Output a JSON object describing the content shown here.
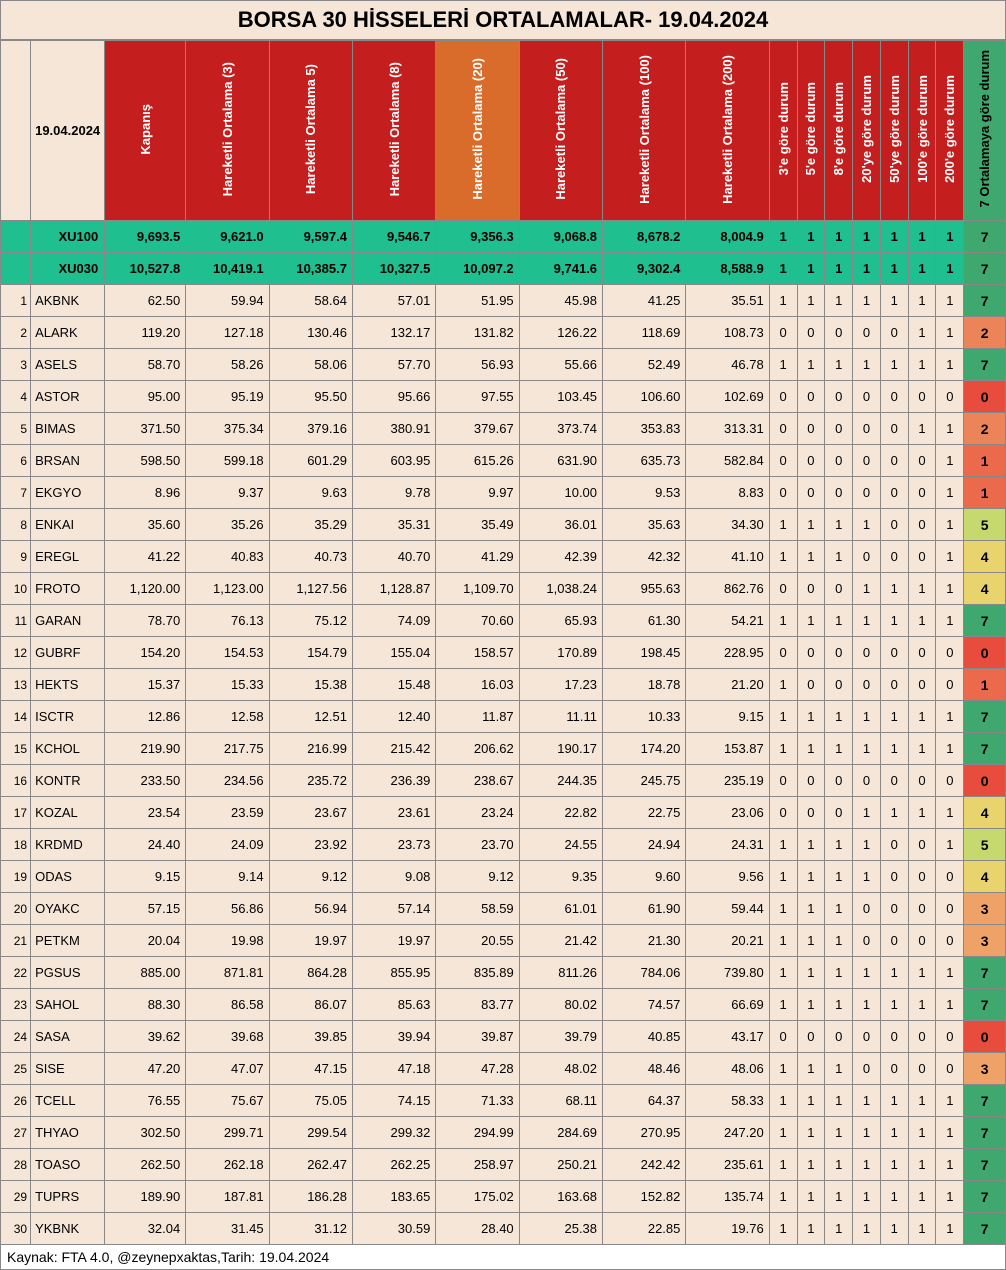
{
  "title": "BORSA 30 HİSSELERİ ORTALAMALAR- 19.04.2024",
  "date_label": "19.04.2024",
  "footer": "Kaynak: FTA 4.0, @zeynepxaktas,Tarih: 19.04.2024",
  "headers": {
    "close": "Kapanış",
    "ma3": "Hareketli Ortalama (3)",
    "ma5": "Hareketli Ortalama 5)",
    "ma8": "Hareketli Ortalama (8)",
    "ma20": "Hareketli Ortalama (20)",
    "ma50": "Hareketli Ortalama (50)",
    "ma100": "Hareketli Ortalama (100)",
    "ma200": "Hareketli Ortalama (200)",
    "f3": "3'e göre durum",
    "f5": "5'e göre durum",
    "f8": "8'e göre durum",
    "f20": "20'ye göre durum",
    "f50": "50'ye göre durum",
    "f100": "100'e göre durum",
    "f200": "200'e göre durum",
    "sum": "7 Ortalamaya göre durum"
  },
  "header_colors": {
    "red": "#c41e1e",
    "orange": "#d96b2b",
    "green": "#3fa86f"
  },
  "sum_color_map": {
    "0": "#e84c3d",
    "1": "#ea6a4b",
    "2": "#ec8459",
    "3": "#efa267",
    "4": "#e9d36d",
    "5": "#c6d96e",
    "6": "#8cc86f",
    "7": "#3fa86f"
  },
  "index_rows": [
    {
      "ticker": "XU100",
      "vals": [
        "9,693.5",
        "9,621.0",
        "9,597.4",
        "9,546.7",
        "9,356.3",
        "9,068.8",
        "8,678.2",
        "8,004.9"
      ],
      "flags": [
        1,
        1,
        1,
        1,
        1,
        1,
        1
      ],
      "sum": 7
    },
    {
      "ticker": "XU030",
      "vals": [
        "10,527.8",
        "10,419.1",
        "10,385.7",
        "10,327.5",
        "10,097.2",
        "9,741.6",
        "9,302.4",
        "8,588.9"
      ],
      "flags": [
        1,
        1,
        1,
        1,
        1,
        1,
        1
      ],
      "sum": 7
    }
  ],
  "rows": [
    {
      "n": 1,
      "ticker": "AKBNK",
      "vals": [
        "62.50",
        "59.94",
        "58.64",
        "57.01",
        "51.95",
        "45.98",
        "41.25",
        "35.51"
      ],
      "flags": [
        1,
        1,
        1,
        1,
        1,
        1,
        1
      ],
      "sum": 7
    },
    {
      "n": 2,
      "ticker": "ALARK",
      "vals": [
        "119.20",
        "127.18",
        "130.46",
        "132.17",
        "131.82",
        "126.22",
        "118.69",
        "108.73"
      ],
      "flags": [
        0,
        0,
        0,
        0,
        0,
        1,
        1
      ],
      "sum": 2
    },
    {
      "n": 3,
      "ticker": "ASELS",
      "vals": [
        "58.70",
        "58.26",
        "58.06",
        "57.70",
        "56.93",
        "55.66",
        "52.49",
        "46.78"
      ],
      "flags": [
        1,
        1,
        1,
        1,
        1,
        1,
        1
      ],
      "sum": 7
    },
    {
      "n": 4,
      "ticker": "ASTOR",
      "vals": [
        "95.00",
        "95.19",
        "95.50",
        "95.66",
        "97.55",
        "103.45",
        "106.60",
        "102.69"
      ],
      "flags": [
        0,
        0,
        0,
        0,
        0,
        0,
        0
      ],
      "sum": 0
    },
    {
      "n": 5,
      "ticker": "BIMAS",
      "vals": [
        "371.50",
        "375.34",
        "379.16",
        "380.91",
        "379.67",
        "373.74",
        "353.83",
        "313.31"
      ],
      "flags": [
        0,
        0,
        0,
        0,
        0,
        1,
        1
      ],
      "sum": 2
    },
    {
      "n": 6,
      "ticker": "BRSAN",
      "vals": [
        "598.50",
        "599.18",
        "601.29",
        "603.95",
        "615.26",
        "631.90",
        "635.73",
        "582.84"
      ],
      "flags": [
        0,
        0,
        0,
        0,
        0,
        0,
        1
      ],
      "sum": 1
    },
    {
      "n": 7,
      "ticker": "EKGYO",
      "vals": [
        "8.96",
        "9.37",
        "9.63",
        "9.78",
        "9.97",
        "10.00",
        "9.53",
        "8.83"
      ],
      "flags": [
        0,
        0,
        0,
        0,
        0,
        0,
        1
      ],
      "sum": 1
    },
    {
      "n": 8,
      "ticker": "ENKAI",
      "vals": [
        "35.60",
        "35.26",
        "35.29",
        "35.31",
        "35.49",
        "36.01",
        "35.63",
        "34.30"
      ],
      "flags": [
        1,
        1,
        1,
        1,
        0,
        0,
        1
      ],
      "sum": 5
    },
    {
      "n": 9,
      "ticker": "EREGL",
      "vals": [
        "41.22",
        "40.83",
        "40.73",
        "40.70",
        "41.29",
        "42.39",
        "42.32",
        "41.10"
      ],
      "flags": [
        1,
        1,
        1,
        0,
        0,
        0,
        1
      ],
      "sum": 4
    },
    {
      "n": 10,
      "ticker": "FROTO",
      "vals": [
        "1,120.00",
        "1,123.00",
        "1,127.56",
        "1,128.87",
        "1,109.70",
        "1,038.24",
        "955.63",
        "862.76"
      ],
      "flags": [
        0,
        0,
        0,
        1,
        1,
        1,
        1
      ],
      "sum": 4
    },
    {
      "n": 11,
      "ticker": "GARAN",
      "vals": [
        "78.70",
        "76.13",
        "75.12",
        "74.09",
        "70.60",
        "65.93",
        "61.30",
        "54.21"
      ],
      "flags": [
        1,
        1,
        1,
        1,
        1,
        1,
        1
      ],
      "sum": 7
    },
    {
      "n": 12,
      "ticker": "GUBRF",
      "vals": [
        "154.20",
        "154.53",
        "154.79",
        "155.04",
        "158.57",
        "170.89",
        "198.45",
        "228.95"
      ],
      "flags": [
        0,
        0,
        0,
        0,
        0,
        0,
        0
      ],
      "sum": 0
    },
    {
      "n": 13,
      "ticker": "HEKTS",
      "vals": [
        "15.37",
        "15.33",
        "15.38",
        "15.48",
        "16.03",
        "17.23",
        "18.78",
        "21.20"
      ],
      "flags": [
        1,
        0,
        0,
        0,
        0,
        0,
        0
      ],
      "sum": 1
    },
    {
      "n": 14,
      "ticker": "ISCTR",
      "vals": [
        "12.86",
        "12.58",
        "12.51",
        "12.40",
        "11.87",
        "11.11",
        "10.33",
        "9.15"
      ],
      "flags": [
        1,
        1,
        1,
        1,
        1,
        1,
        1
      ],
      "sum": 7
    },
    {
      "n": 15,
      "ticker": "KCHOL",
      "vals": [
        "219.90",
        "217.75",
        "216.99",
        "215.42",
        "206.62",
        "190.17",
        "174.20",
        "153.87"
      ],
      "flags": [
        1,
        1,
        1,
        1,
        1,
        1,
        1
      ],
      "sum": 7
    },
    {
      "n": 16,
      "ticker": "KONTR",
      "vals": [
        "233.50",
        "234.56",
        "235.72",
        "236.39",
        "238.67",
        "244.35",
        "245.75",
        "235.19"
      ],
      "flags": [
        0,
        0,
        0,
        0,
        0,
        0,
        0
      ],
      "sum": 0
    },
    {
      "n": 17,
      "ticker": "KOZAL",
      "vals": [
        "23.54",
        "23.59",
        "23.67",
        "23.61",
        "23.24",
        "22.82",
        "22.75",
        "23.06"
      ],
      "flags": [
        0,
        0,
        0,
        1,
        1,
        1,
        1
      ],
      "sum": 4
    },
    {
      "n": 18,
      "ticker": "KRDMD",
      "vals": [
        "24.40",
        "24.09",
        "23.92",
        "23.73",
        "23.70",
        "24.55",
        "24.94",
        "24.31"
      ],
      "flags": [
        1,
        1,
        1,
        1,
        0,
        0,
        1
      ],
      "sum": 5
    },
    {
      "n": 19,
      "ticker": "ODAS",
      "vals": [
        "9.15",
        "9.14",
        "9.12",
        "9.08",
        "9.12",
        "9.35",
        "9.60",
        "9.56"
      ],
      "flags": [
        1,
        1,
        1,
        1,
        0,
        0,
        0
      ],
      "sum": 4
    },
    {
      "n": 20,
      "ticker": "OYAKC",
      "vals": [
        "57.15",
        "56.86",
        "56.94",
        "57.14",
        "58.59",
        "61.01",
        "61.90",
        "59.44"
      ],
      "flags": [
        1,
        1,
        1,
        0,
        0,
        0,
        0
      ],
      "sum": 3
    },
    {
      "n": 21,
      "ticker": "PETKM",
      "vals": [
        "20.04",
        "19.98",
        "19.97",
        "19.97",
        "20.55",
        "21.42",
        "21.30",
        "20.21"
      ],
      "flags": [
        1,
        1,
        1,
        0,
        0,
        0,
        0
      ],
      "sum": 3
    },
    {
      "n": 22,
      "ticker": "PGSUS",
      "vals": [
        "885.00",
        "871.81",
        "864.28",
        "855.95",
        "835.89",
        "811.26",
        "784.06",
        "739.80"
      ],
      "flags": [
        1,
        1,
        1,
        1,
        1,
        1,
        1
      ],
      "sum": 7
    },
    {
      "n": 23,
      "ticker": "SAHOL",
      "vals": [
        "88.30",
        "86.58",
        "86.07",
        "85.63",
        "83.77",
        "80.02",
        "74.57",
        "66.69"
      ],
      "flags": [
        1,
        1,
        1,
        1,
        1,
        1,
        1
      ],
      "sum": 7
    },
    {
      "n": 24,
      "ticker": "SASA",
      "vals": [
        "39.62",
        "39.68",
        "39.85",
        "39.94",
        "39.87",
        "39.79",
        "40.85",
        "43.17"
      ],
      "flags": [
        0,
        0,
        0,
        0,
        0,
        0,
        0
      ],
      "sum": 0
    },
    {
      "n": 25,
      "ticker": "SISE",
      "vals": [
        "47.20",
        "47.07",
        "47.15",
        "47.18",
        "47.28",
        "48.02",
        "48.46",
        "48.06"
      ],
      "flags": [
        1,
        1,
        1,
        0,
        0,
        0,
        0
      ],
      "sum": 3
    },
    {
      "n": 26,
      "ticker": "TCELL",
      "vals": [
        "76.55",
        "75.67",
        "75.05",
        "74.15",
        "71.33",
        "68.11",
        "64.37",
        "58.33"
      ],
      "flags": [
        1,
        1,
        1,
        1,
        1,
        1,
        1
      ],
      "sum": 7
    },
    {
      "n": 27,
      "ticker": "THYAO",
      "vals": [
        "302.50",
        "299.71",
        "299.54",
        "299.32",
        "294.99",
        "284.69",
        "270.95",
        "247.20"
      ],
      "flags": [
        1,
        1,
        1,
        1,
        1,
        1,
        1
      ],
      "sum": 7
    },
    {
      "n": 28,
      "ticker": "TOASO",
      "vals": [
        "262.50",
        "262.18",
        "262.47",
        "262.25",
        "258.97",
        "250.21",
        "242.42",
        "235.61"
      ],
      "flags": [
        1,
        1,
        1,
        1,
        1,
        1,
        1
      ],
      "sum": 7
    },
    {
      "n": 29,
      "ticker": "TUPRS",
      "vals": [
        "189.90",
        "187.81",
        "186.28",
        "183.65",
        "175.02",
        "163.68",
        "152.82",
        "135.74"
      ],
      "flags": [
        1,
        1,
        1,
        1,
        1,
        1,
        1
      ],
      "sum": 7
    },
    {
      "n": 30,
      "ticker": "YKBNK",
      "vals": [
        "32.04",
        "31.45",
        "31.12",
        "30.59",
        "28.40",
        "25.38",
        "22.85",
        "19.76"
      ],
      "flags": [
        1,
        1,
        1,
        1,
        1,
        1,
        1
      ],
      "sum": 7
    }
  ]
}
